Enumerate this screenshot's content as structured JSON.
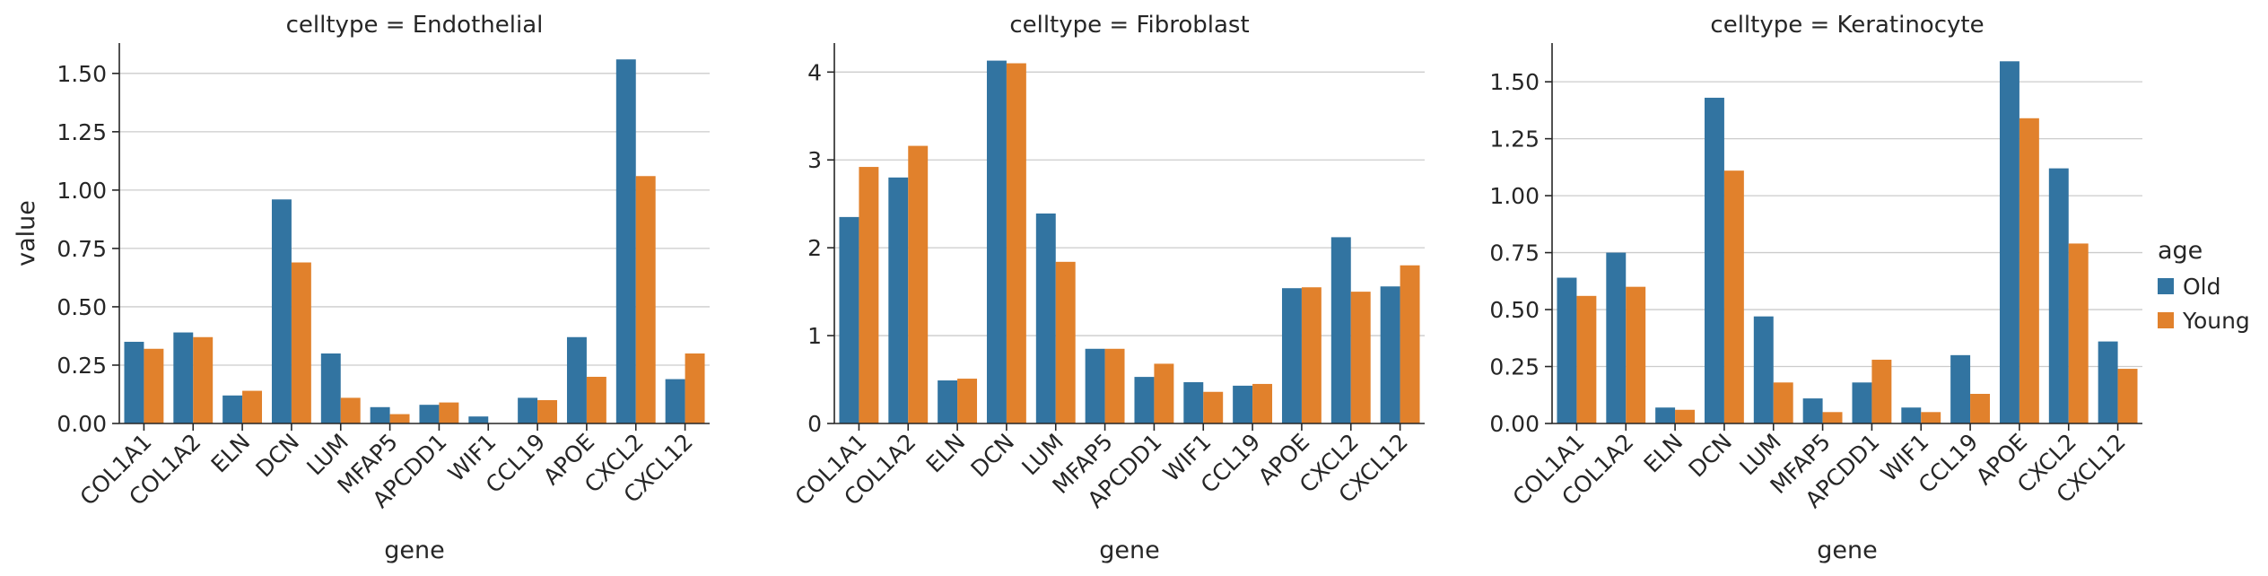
{
  "colors": {
    "Old": "#3274a1",
    "Young": "#e1812c"
  },
  "legend": {
    "title": "age",
    "items": [
      "Old",
      "Young"
    ]
  },
  "chart_data": [
    {
      "type": "bar",
      "title": "celltype = Endothelial",
      "xlabel": "gene",
      "ylabel": "value",
      "ylim": [
        0,
        1.63
      ],
      "yticks": [
        "0.00",
        "0.25",
        "0.50",
        "0.75",
        "1.00",
        "1.25",
        "1.50"
      ],
      "categories": [
        "COL1A1",
        "COL1A2",
        "ELN",
        "DCN",
        "LUM",
        "MFAP5",
        "APCDD1",
        "WIF1",
        "CCL19",
        "APOE",
        "CXCL2",
        "CXCL12"
      ],
      "series": [
        {
          "name": "Old",
          "values": [
            0.35,
            0.39,
            0.12,
            0.96,
            0.3,
            0.07,
            0.08,
            0.03,
            0.11,
            0.37,
            1.56,
            0.19
          ]
        },
        {
          "name": "Young",
          "values": [
            0.32,
            0.37,
            0.14,
            0.69,
            0.11,
            0.04,
            0.09,
            0.0,
            0.1,
            0.2,
            1.06,
            0.3
          ]
        }
      ]
    },
    {
      "type": "bar",
      "title": "celltype = Fibroblast",
      "xlabel": "gene",
      "ylabel": "",
      "ylim": [
        0,
        4.33
      ],
      "yticks": [
        "0",
        "1",
        "2",
        "3",
        "4"
      ],
      "categories": [
        "COL1A1",
        "COL1A2",
        "ELN",
        "DCN",
        "LUM",
        "MFAP5",
        "APCDD1",
        "WIF1",
        "CCL19",
        "APOE",
        "CXCL2",
        "CXCL12"
      ],
      "series": [
        {
          "name": "Old",
          "values": [
            2.35,
            2.8,
            0.49,
            4.13,
            2.39,
            0.85,
            0.53,
            0.47,
            0.43,
            1.54,
            2.12,
            1.56
          ]
        },
        {
          "name": "Young",
          "values": [
            2.92,
            3.16,
            0.51,
            4.1,
            1.84,
            0.85,
            0.68,
            0.36,
            0.45,
            1.55,
            1.5,
            1.8
          ]
        }
      ]
    },
    {
      "type": "bar",
      "title": "celltype = Keratinocyte",
      "xlabel": "gene",
      "ylabel": "",
      "ylim": [
        0,
        1.67
      ],
      "yticks": [
        "0.00",
        "0.25",
        "0.50",
        "0.75",
        "1.00",
        "1.25",
        "1.50"
      ],
      "categories": [
        "COL1A1",
        "COL1A2",
        "ELN",
        "DCN",
        "LUM",
        "MFAP5",
        "APCDD1",
        "WIF1",
        "CCL19",
        "APOE",
        "CXCL2",
        "CXCL12"
      ],
      "series": [
        {
          "name": "Old",
          "values": [
            0.64,
            0.75,
            0.07,
            1.43,
            0.47,
            0.11,
            0.18,
            0.07,
            0.3,
            1.59,
            1.12,
            0.36
          ]
        },
        {
          "name": "Young",
          "values": [
            0.56,
            0.6,
            0.06,
            1.11,
            0.18,
            0.05,
            0.28,
            0.05,
            0.13,
            1.34,
            0.79,
            0.24
          ]
        }
      ]
    }
  ]
}
